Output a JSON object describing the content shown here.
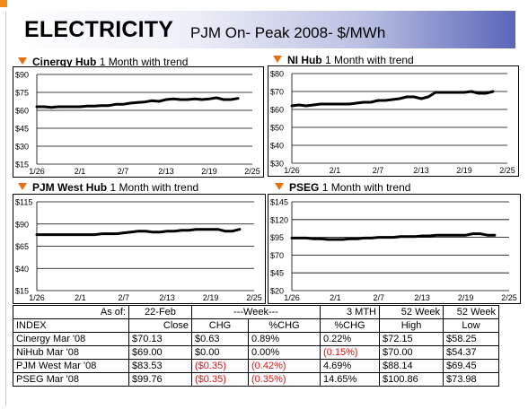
{
  "header": {
    "title": "ELECTRICITY",
    "subtitle": "PJM On- Peak 2008- $/MWh"
  },
  "colors": {
    "accent": "#e56f12",
    "negative": "#e01010",
    "band_dark": "#5a66b8"
  },
  "chart_data": [
    {
      "type": "line",
      "name_bold": "Cinergy Hub",
      "name_rest": "1 Month with trend",
      "y_ticks": [
        "$90",
        "$75",
        "$60",
        "$45",
        "$30",
        "$15"
      ],
      "ylim": [
        15,
        90
      ],
      "x_ticks": [
        "1/26",
        "2/1",
        "2/7",
        "2/13",
        "2/19",
        "2/25"
      ],
      "xlim": [
        0,
        30
      ],
      "x": [
        0,
        1,
        2,
        3,
        4,
        5,
        6,
        7,
        8,
        9,
        10,
        11,
        12,
        13,
        14,
        15,
        16,
        17,
        18,
        19,
        20,
        21,
        22,
        23,
        24,
        25,
        26,
        27,
        28
      ],
      "values": [
        63,
        63,
        62.5,
        63,
        63,
        63,
        63,
        63.5,
        63.5,
        64,
        64,
        65,
        65,
        66,
        66.5,
        67,
        68,
        67.5,
        69,
        69.5,
        69,
        69,
        69.5,
        69,
        69.5,
        70.5,
        69,
        69,
        70
      ]
    },
    {
      "type": "line",
      "name_bold": "NI Hub",
      "name_rest": "1 Month with trend",
      "y_ticks": [
        "$80",
        "$70",
        "$60",
        "$50",
        "$40",
        "$30"
      ],
      "ylim": [
        30,
        80
      ],
      "x_ticks": [
        "1/26",
        "2/1",
        "2/7",
        "2/13",
        "2/19",
        "2/25"
      ],
      "xlim": [
        0,
        30
      ],
      "x": [
        0,
        1,
        2,
        3,
        4,
        5,
        6,
        7,
        8,
        9,
        10,
        11,
        12,
        13,
        14,
        15,
        16,
        17,
        18,
        19,
        20,
        21,
        22,
        23,
        24,
        25,
        26,
        27,
        28
      ],
      "values": [
        62,
        62.5,
        62,
        62.5,
        63,
        63,
        63,
        63,
        63,
        63.5,
        64,
        64,
        65,
        65,
        65.5,
        66,
        67,
        67,
        66,
        67,
        69.5,
        69.5,
        69.5,
        69.5,
        69.5,
        70,
        69,
        69,
        70
      ]
    },
    {
      "type": "line",
      "name_bold": "PJM West Hub",
      "name_rest": "1 Month with trend",
      "y_ticks": [
        "$115",
        "$90",
        "$65",
        "$40",
        "$15"
      ],
      "ylim": [
        15,
        115
      ],
      "x_ticks": [
        "1/26",
        "2/1",
        "2/7",
        "2/13",
        "2/19",
        "2/25"
      ],
      "xlim": [
        0,
        30
      ],
      "x": [
        0,
        1,
        2,
        3,
        4,
        5,
        6,
        7,
        8,
        9,
        10,
        11,
        12,
        13,
        14,
        15,
        16,
        17,
        18,
        19,
        20,
        21,
        22,
        23,
        24,
        25,
        26,
        27,
        28
      ],
      "values": [
        78,
        78,
        78,
        78,
        78,
        78,
        78,
        78,
        78,
        79,
        79,
        79,
        80,
        81,
        82,
        82,
        81,
        81,
        82,
        82,
        83,
        83,
        84,
        84,
        84,
        84,
        82,
        82,
        84
      ]
    },
    {
      "type": "line",
      "name_bold": "PSEG",
      "name_rest": "1 Month with trend",
      "y_ticks": [
        "$145",
        "$120",
        "$95",
        "$70",
        "$45",
        "$20"
      ],
      "ylim": [
        20,
        145
      ],
      "x_ticks": [
        "1/26",
        "2/1",
        "2/7",
        "2/13",
        "2/19",
        "2/25"
      ],
      "xlim": [
        0,
        30
      ],
      "x": [
        0,
        1,
        2,
        3,
        4,
        5,
        6,
        7,
        8,
        9,
        10,
        11,
        12,
        13,
        14,
        15,
        16,
        17,
        18,
        19,
        20,
        21,
        22,
        23,
        24,
        25,
        26,
        27,
        28
      ],
      "values": [
        94,
        94,
        94,
        93,
        93,
        92,
        92,
        92,
        93,
        93,
        94,
        94,
        95,
        95,
        95,
        96,
        96,
        96,
        97,
        97,
        98,
        98,
        98,
        98,
        98,
        100,
        100,
        98,
        98
      ]
    }
  ],
  "table": {
    "asof_label": "As of:",
    "asof_date": "22-Feb",
    "week_label": "---Week---",
    "mth_label": "3 MTH",
    "wk52_label": "52 Week",
    "index_label": "INDEX",
    "close_label": "Close",
    "chg_label": "CHG",
    "pchg_label": "%CHG",
    "mpchg_label": "%CHG",
    "high_label": "High",
    "low_label": "Low",
    "rows": [
      {
        "index": "Cinergy Mar '08",
        "close": "$70.13",
        "chg": "$0.63",
        "pchg": "0.89%",
        "mpchg": "0.22%",
        "high": "$72.15",
        "low": "$58.25",
        "chg_neg": false,
        "pchg_neg": false,
        "mpchg_neg": false
      },
      {
        "index": "NiHub Mar '08",
        "close": "$69.00",
        "chg": "$0.00",
        "pchg": "0.00%",
        "mpchg": "(0.15%)",
        "high": "$70.00",
        "low": "$54.37",
        "chg_neg": false,
        "pchg_neg": false,
        "mpchg_neg": true
      },
      {
        "index": "PJM West Mar '08",
        "close": "$83.53",
        "chg": "($0.35)",
        "pchg": "(0.42%)",
        "mpchg": "4.69%",
        "high": "$88.14",
        "low": "$69.45",
        "chg_neg": true,
        "pchg_neg": true,
        "mpchg_neg": false
      },
      {
        "index": "PSEG Mar '08",
        "close": "$99.76",
        "chg": "($0.35)",
        "pchg": "(0.35%)",
        "mpchg": "14.65%",
        "high": "$100.86",
        "low": "$73.98",
        "chg_neg": true,
        "pchg_neg": true,
        "mpchg_neg": false
      }
    ]
  }
}
